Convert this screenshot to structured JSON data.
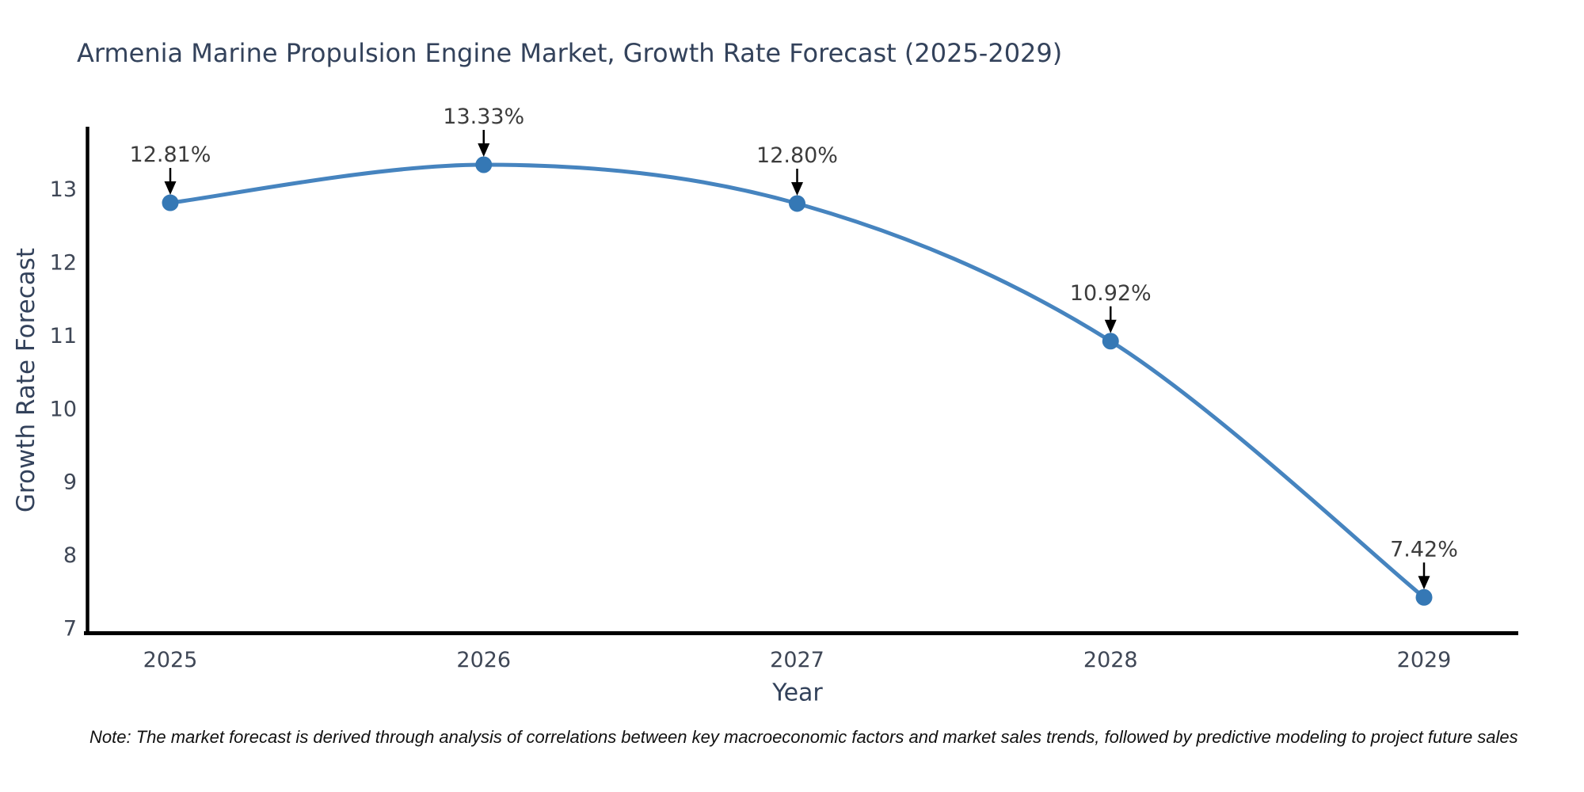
{
  "title": "Armenia Marine Propulsion Engine Market, Growth Rate Forecast (2025-2029)",
  "note": "Note: The market forecast is derived through analysis of correlations between key macroeconomic factors and market sales trends, followed by predictive modeling to project future sales",
  "chart_data": {
    "type": "line",
    "title": "Armenia Marine Propulsion Engine Market, Growth Rate Forecast (2025-2029)",
    "xlabel": "Year",
    "ylabel": "Growth Rate Forecast",
    "categories": [
      "2025",
      "2026",
      "2027",
      "2028",
      "2029"
    ],
    "values": [
      12.81,
      13.33,
      12.8,
      10.92,
      7.42
    ],
    "point_labels": [
      "12.81%",
      "13.33%",
      "12.80%",
      "10.92%",
      "7.42%"
    ],
    "yticks": [
      "7",
      "8",
      "9",
      "10",
      "11",
      "12",
      "13"
    ],
    "ylim": [
      6.9,
      13.9
    ],
    "grid": false,
    "legend": "none",
    "line_color": "#4684bf",
    "marker_color": "#3578b5",
    "arrow_color": "#000000"
  },
  "colors": {
    "background": "#ffffff",
    "title": "#33425b",
    "axis_label": "#33425b",
    "tick_label": "#3f4756",
    "annotation": "#3c3c3c",
    "spine": "#000000",
    "note": "#111111"
  }
}
